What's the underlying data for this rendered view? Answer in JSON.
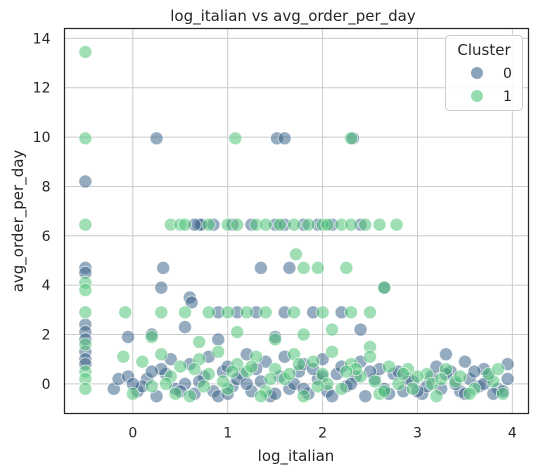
{
  "chart_data": {
    "type": "scatter",
    "title": "log_italian vs avg_order_per_day",
    "xlabel": "log_italian",
    "ylabel": "avg_order_per_day",
    "xlim": [
      -0.72,
      4.17
    ],
    "ylim": [
      -1.2,
      14.4
    ],
    "xticks": [
      "0",
      "1",
      "2",
      "3",
      "4"
    ],
    "yticks": [
      "0",
      "2",
      "4",
      "6",
      "8",
      "10",
      "12",
      "14"
    ],
    "grid": true,
    "legend": {
      "title": "Cluster",
      "placement": "top-right"
    },
    "series": [
      {
        "name": "0",
        "color": "#3e668a",
        "points": [
          [
            -0.5,
            8.2
          ],
          [
            -0.5,
            4.7
          ],
          [
            -0.5,
            4.5
          ],
          [
            -0.5,
            2.4
          ],
          [
            -0.5,
            2.1
          ],
          [
            -0.5,
            1.8
          ],
          [
            -0.5,
            1.3
          ],
          [
            -0.5,
            1.0
          ],
          [
            -0.5,
            0.8
          ],
          [
            0.25,
            9.95
          ],
          [
            1.52,
            9.95
          ],
          [
            1.6,
            9.95
          ],
          [
            2.32,
            9.95
          ],
          [
            0.32,
            4.7
          ],
          [
            1.35,
            4.7
          ],
          [
            1.65,
            4.7
          ],
          [
            0.3,
            3.9
          ],
          [
            0.6,
            3.5
          ],
          [
            0.62,
            3.3
          ],
          [
            2.65,
            3.9
          ],
          [
            0.7,
            6.45
          ],
          [
            0.72,
            6.45
          ],
          [
            0.65,
            6.45
          ],
          [
            0.85,
            6.45
          ],
          [
            1.05,
            6.45
          ],
          [
            1.25,
            6.45
          ],
          [
            1.5,
            6.45
          ],
          [
            1.6,
            6.45
          ],
          [
            1.8,
            6.45
          ],
          [
            1.95,
            6.45
          ],
          [
            2.1,
            6.45
          ],
          [
            2.4,
            6.45
          ],
          [
            -0.05,
            1.9
          ],
          [
            0.2,
            2.0
          ],
          [
            0.55,
            2.3
          ],
          [
            0.9,
            2.9
          ],
          [
            1.1,
            2.9
          ],
          [
            1.3,
            2.9
          ],
          [
            1.6,
            2.9
          ],
          [
            1.9,
            2.9
          ],
          [
            2.2,
            2.9
          ],
          [
            2.4,
            2.2
          ],
          [
            3.3,
            1.2
          ],
          [
            0.9,
            1.8
          ],
          [
            1.5,
            1.9
          ],
          [
            -0.2,
            -0.2
          ],
          [
            -0.15,
            0.2
          ],
          [
            -0.05,
            0.3
          ],
          [
            0.05,
            -0.3
          ],
          [
            0.15,
            0.2
          ],
          [
            0.25,
            -0.5
          ],
          [
            0.35,
            0.4
          ],
          [
            0.45,
            -0.2
          ],
          [
            0.55,
            0.0
          ],
          [
            0.65,
            -0.4
          ],
          [
            0.75,
            0.3
          ],
          [
            0.85,
            -0.3
          ],
          [
            0.95,
            0.5
          ],
          [
            1.05,
            -0.1
          ],
          [
            1.15,
            0.4
          ],
          [
            1.25,
            -0.3
          ],
          [
            1.35,
            0.1
          ],
          [
            1.45,
            -0.5
          ],
          [
            1.55,
            0.3
          ],
          [
            1.65,
            -0.2
          ],
          [
            1.75,
            0.5
          ],
          [
            1.85,
            -0.4
          ],
          [
            1.95,
            0.2
          ],
          [
            2.05,
            -0.3
          ],
          [
            2.15,
            0.4
          ],
          [
            2.25,
            -0.1
          ],
          [
            2.35,
            0.3
          ],
          [
            2.45,
            -0.5
          ],
          [
            2.55,
            0.2
          ],
          [
            2.65,
            -0.2
          ],
          [
            2.75,
            0.4
          ],
          [
            2.85,
            -0.3
          ],
          [
            2.95,
            0.1
          ],
          [
            3.05,
            -0.4
          ],
          [
            3.15,
            0.3
          ],
          [
            3.25,
            -0.2
          ],
          [
            3.35,
            0.5
          ],
          [
            3.45,
            -0.3
          ],
          [
            3.55,
            0.2
          ],
          [
            3.65,
            -0.1
          ],
          [
            3.75,
            0.3
          ],
          [
            3.85,
            -0.2
          ],
          [
            3.95,
            0.8
          ],
          [
            3.95,
            0.2
          ],
          [
            3.9,
            -0.3
          ],
          [
            3.7,
            0.6
          ],
          [
            3.5,
            0.9
          ],
          [
            3.2,
            0.7
          ],
          [
            0.4,
            1.0
          ],
          [
            0.6,
            0.8
          ],
          [
            0.8,
            1.1
          ],
          [
            1.0,
            0.7
          ],
          [
            1.2,
            1.2
          ],
          [
            1.4,
            0.9
          ],
          [
            1.6,
            1.1
          ],
          [
            1.8,
            0.8
          ],
          [
            2.0,
            1.0
          ],
          [
            2.2,
            0.7
          ],
          [
            2.4,
            0.9
          ],
          [
            2.6,
            0.6
          ],
          [
            0.3,
            0.6
          ],
          [
            0.5,
            -0.3
          ],
          [
            0.7,
            0.1
          ],
          [
            0.9,
            -0.5
          ],
          [
            1.1,
            0.2
          ],
          [
            1.3,
            0.6
          ],
          [
            1.5,
            -0.4
          ],
          [
            1.7,
            0.0
          ],
          [
            1.9,
            0.6
          ],
          [
            2.1,
            -0.5
          ],
          [
            2.3,
            0.0
          ],
          [
            2.5,
            0.5
          ],
          [
            2.7,
            -0.4
          ],
          [
            2.9,
            0.2
          ],
          [
            3.1,
            -0.1
          ],
          [
            3.3,
            0.4
          ],
          [
            3.5,
            -0.4
          ],
          [
            3.7,
            0.0
          ],
          [
            0.1,
            -0.1
          ],
          [
            0.2,
            0.5
          ],
          [
            1.0,
            -0.4
          ],
          [
            1.2,
            0.0
          ],
          [
            1.8,
            -0.2
          ],
          [
            2.0,
            0.3
          ],
          [
            2.8,
            0.5
          ],
          [
            3.0,
            -0.3
          ],
          [
            3.4,
            0.0
          ],
          [
            3.6,
            0.5
          ],
          [
            3.8,
            -0.4
          ],
          [
            0.0,
            0.0
          ]
        ]
      },
      {
        "name": "1",
        "color": "#52c47a",
        "points": [
          [
            -0.5,
            13.45
          ],
          [
            -0.5,
            9.95
          ],
          [
            -0.5,
            6.45
          ],
          [
            -0.5,
            4.1
          ],
          [
            -0.5,
            3.8
          ],
          [
            -0.5,
            2.9
          ],
          [
            -0.5,
            1.6
          ],
          [
            -0.5,
            0.5
          ],
          [
            -0.5,
            0.2
          ],
          [
            -0.5,
            -0.2
          ],
          [
            1.08,
            9.95
          ],
          [
            2.3,
            9.95
          ],
          [
            0.4,
            6.45
          ],
          [
            0.5,
            6.45
          ],
          [
            0.55,
            6.45
          ],
          [
            0.8,
            6.45
          ],
          [
            1.0,
            6.45
          ],
          [
            1.1,
            6.45
          ],
          [
            1.3,
            6.45
          ],
          [
            1.4,
            6.45
          ],
          [
            1.55,
            6.45
          ],
          [
            1.7,
            6.45
          ],
          [
            1.85,
            6.45
          ],
          [
            2.0,
            6.45
          ],
          [
            2.05,
            6.45
          ],
          [
            2.2,
            6.45
          ],
          [
            2.3,
            6.45
          ],
          [
            2.45,
            6.45
          ],
          [
            2.6,
            6.45
          ],
          [
            2.78,
            6.45
          ],
          [
            1.72,
            5.25
          ],
          [
            1.8,
            4.7
          ],
          [
            1.95,
            4.7
          ],
          [
            2.25,
            4.7
          ],
          [
            -0.08,
            2.9
          ],
          [
            0.3,
            2.9
          ],
          [
            0.55,
            2.9
          ],
          [
            0.8,
            2.9
          ],
          [
            1.0,
            2.9
          ],
          [
            1.2,
            2.9
          ],
          [
            1.4,
            2.9
          ],
          [
            1.7,
            2.9
          ],
          [
            2.0,
            2.9
          ],
          [
            2.3,
            2.9
          ],
          [
            2.5,
            2.9
          ],
          [
            2.65,
            3.9
          ],
          [
            0.2,
            1.9
          ],
          [
            0.7,
            1.7
          ],
          [
            1.1,
            2.1
          ],
          [
            1.5,
            1.8
          ],
          [
            1.8,
            2.0
          ],
          [
            2.1,
            2.2
          ],
          [
            2.5,
            1.5
          ],
          [
            -0.1,
            1.1
          ],
          [
            0.1,
            0.9
          ],
          [
            0.3,
            1.2
          ],
          [
            0.5,
            0.7
          ],
          [
            0.7,
            1.0
          ],
          [
            0.9,
            1.3
          ],
          [
            1.1,
            0.8
          ],
          [
            1.3,
            1.1
          ],
          [
            1.5,
            0.6
          ],
          [
            1.7,
            1.2
          ],
          [
            1.9,
            0.9
          ],
          [
            2.1,
            1.3
          ],
          [
            2.3,
            0.8
          ],
          [
            2.5,
            1.1
          ],
          [
            2.7,
            0.7
          ],
          [
            2.9,
            0.6
          ],
          [
            3.1,
            0.4
          ],
          [
            3.3,
            0.6
          ],
          [
            0.0,
            -0.4
          ],
          [
            0.2,
            -0.1
          ],
          [
            0.4,
            0.3
          ],
          [
            0.6,
            -0.5
          ],
          [
            0.8,
            0.4
          ],
          [
            1.0,
            -0.2
          ],
          [
            1.2,
            0.5
          ],
          [
            1.4,
            -0.3
          ],
          [
            1.6,
            0.2
          ],
          [
            1.8,
            -0.5
          ],
          [
            2.0,
            0.4
          ],
          [
            2.2,
            -0.2
          ],
          [
            2.4,
            0.3
          ],
          [
            2.6,
            -0.4
          ],
          [
            2.8,
            0.0
          ],
          [
            3.0,
            0.3
          ],
          [
            3.2,
            -0.5
          ],
          [
            3.4,
            0.1
          ],
          [
            3.6,
            -0.2
          ],
          [
            3.8,
            0.1
          ],
          [
            3.9,
            -0.4
          ],
          [
            3.75,
            0.4
          ],
          [
            0.35,
            0.0
          ],
          [
            0.65,
            0.6
          ],
          [
            0.95,
            0.1
          ],
          [
            1.25,
            0.7
          ],
          [
            1.45,
            0.2
          ],
          [
            1.75,
            0.8
          ],
          [
            2.05,
            0.0
          ],
          [
            2.35,
            0.6
          ],
          [
            2.55,
            0.1
          ],
          [
            2.85,
            0.4
          ],
          [
            3.15,
            0.0
          ],
          [
            3.45,
            0.3
          ],
          [
            0.45,
            -0.4
          ],
          [
            0.75,
            -0.1
          ],
          [
            1.05,
            0.5
          ],
          [
            1.35,
            -0.5
          ],
          [
            1.65,
            0.4
          ],
          [
            1.95,
            -0.1
          ],
          [
            2.25,
            0.5
          ],
          [
            2.65,
            -0.3
          ],
          [
            2.95,
            -0.2
          ],
          [
            3.25,
            0.2
          ],
          [
            3.55,
            -0.4
          ],
          [
            3.85,
            0.6
          ]
        ]
      }
    ]
  }
}
